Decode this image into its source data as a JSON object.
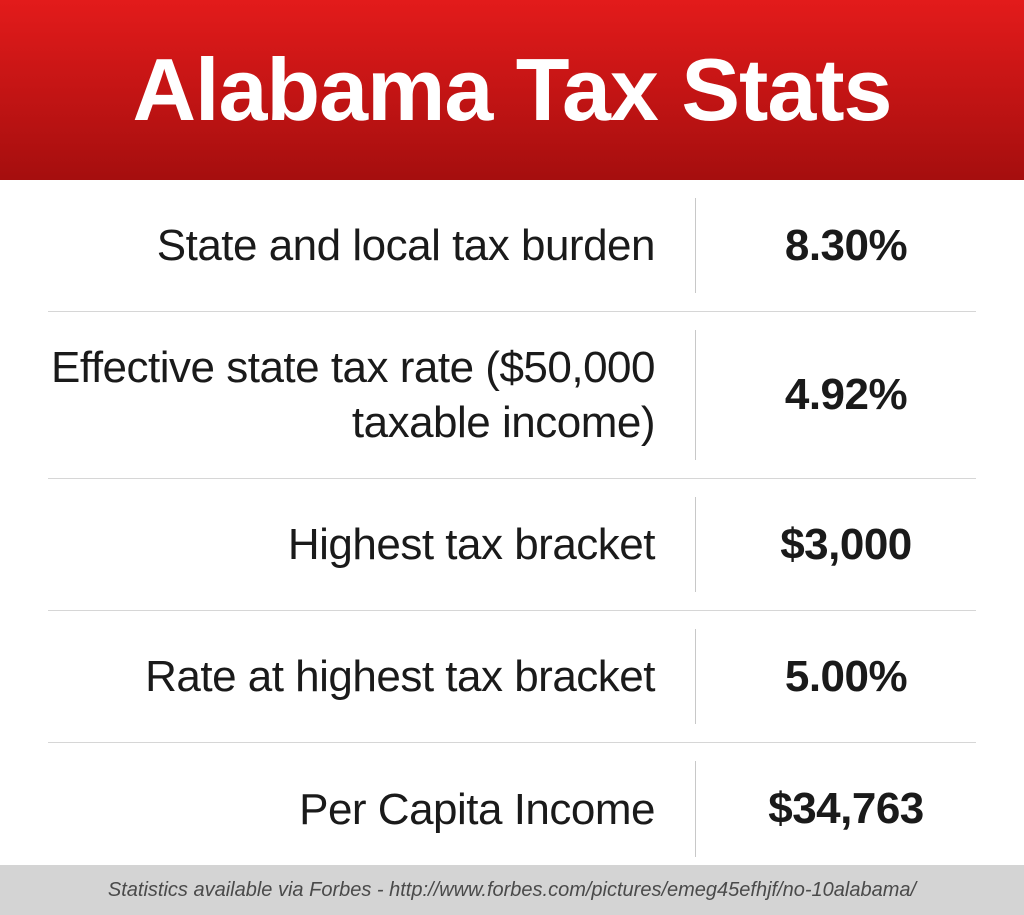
{
  "header": {
    "title": "Alabama Tax Stats",
    "gradient_top": "#e31b1b",
    "gradient_bottom": "#a50e0e",
    "text_color": "#ffffff",
    "title_fontsize": 88,
    "title_fontweight": 800
  },
  "table": {
    "type": "table",
    "label_fontsize": 44,
    "value_fontsize": 44,
    "value_fontweight": 700,
    "divider_color": "#c8c8c8",
    "row_border_color": "#d6d6d6",
    "text_color": "#1a1a1a",
    "rows": [
      {
        "label": "State and local tax burden",
        "value": "8.30%"
      },
      {
        "label": "Effective state tax rate ($50,000 taxable income)",
        "value": "4.92%"
      },
      {
        "label": "Highest tax bracket",
        "value": "$3,000"
      },
      {
        "label": "Rate at highest tax bracket",
        "value": "5.00%"
      },
      {
        "label": "Per Capita Income",
        "value": "$34,763"
      }
    ]
  },
  "footer": {
    "text": "Statistics available via Forbes - http://www.forbes.com/pictures/emeg45efhjf/no-10alabama/",
    "background_color": "#d4d4d4",
    "text_color": "#4a4a4a",
    "fontsize": 20
  }
}
